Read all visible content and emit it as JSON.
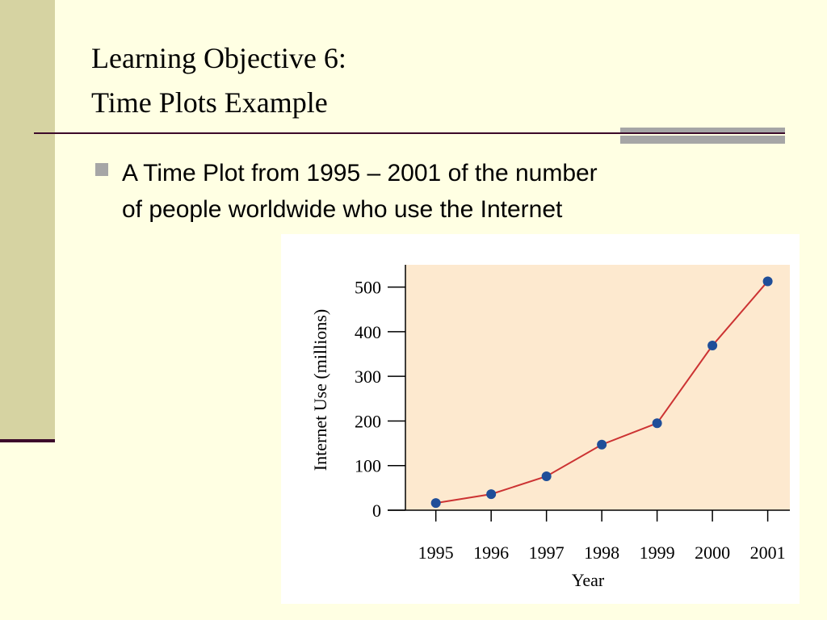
{
  "slide": {
    "title_lines": [
      "Learning Objective 6:",
      "Time Plots Example"
    ],
    "bullet_lines": [
      "A Time Plot from 1995 – 2001 of the number",
      "of people worldwide who use the Internet"
    ]
  },
  "chart_data": {
    "type": "line",
    "x_label": "Year",
    "y_label": "Internet Use (millions)",
    "x": [
      1995,
      1996,
      1997,
      1998,
      1999,
      2000,
      2001
    ],
    "series": [
      {
        "color": "#cc3333",
        "marker_color": "#1f4e99",
        "values": [
          16,
          36,
          76,
          147,
          195,
          369,
          513
        ]
      }
    ],
    "xlim": [
      1994.45,
      2001.4
    ],
    "xticks": [
      1995,
      1996,
      1997,
      1998,
      1999,
      2000,
      2001
    ],
    "ylim": [
      0,
      550
    ],
    "yticks": [
      0,
      100,
      200,
      300,
      400,
      500
    ],
    "plot_background": "#fde9cf"
  }
}
